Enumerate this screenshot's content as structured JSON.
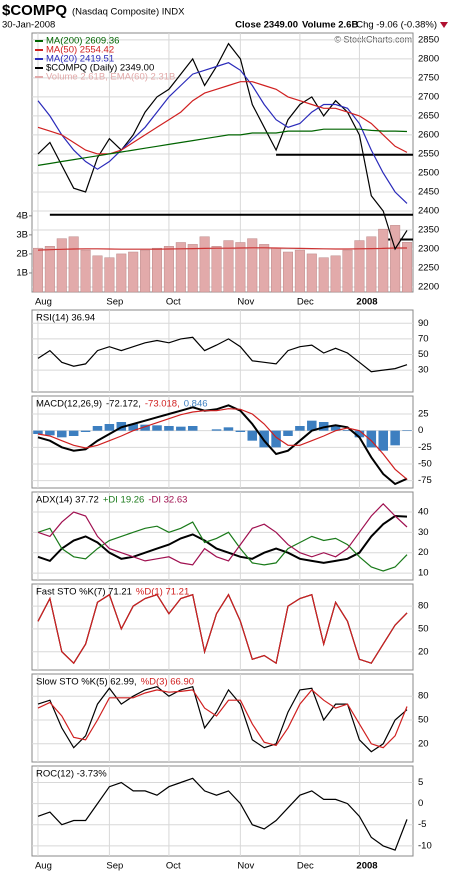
{
  "header": {
    "symbol": "$COMPQ",
    "name": "(Nasdaq Composite) INDX",
    "date": "30-Jan-2008",
    "close": "Close 2349.00",
    "volume": "Volume 2.6B",
    "change": "Chg -9.06 (-0.38%)",
    "watermark": "© StockCharts.com"
  },
  "chart_data": [
    {
      "type": "line",
      "legend": "stack",
      "categories": [
        "Aug",
        null,
        null,
        null,
        null,
        null,
        "Sep",
        null,
        null,
        null,
        null,
        "Oct",
        null,
        null,
        null,
        null,
        null,
        "Nov",
        null,
        null,
        null,
        null,
        "Dec",
        null,
        null,
        null,
        null,
        "2008",
        null,
        null,
        null,
        null
      ],
      "ylim": [
        2187,
        2868
      ],
      "yticks": [
        2200,
        2250,
        2300,
        2350,
        2400,
        2450,
        2500,
        2550,
        2600,
        2650,
        2700,
        2750,
        2800,
        2850
      ],
      "y2lim": [
        0,
        13.6
      ],
      "y2ticks": [
        {
          "value": 1,
          "label": "1B"
        },
        {
          "value": 2,
          "label": "2B"
        },
        {
          "value": 3,
          "label": "3B"
        },
        {
          "value": 4,
          "label": "4B"
        }
      ],
      "hlines": [
        {
          "value": 2548,
          "start": 20
        },
        {
          "value": 2390,
          "start": 1
        },
        {
          "value": 2325,
          "start": 29
        }
      ],
      "series": [
        {
          "name": "Volume 2.61B, EMA(60) 2.31B",
          "kind": "bar",
          "axis": "y2",
          "color": "#e2aaaa",
          "values": [
            2.3,
            2.4,
            2.8,
            2.9,
            2.2,
            1.9,
            1.8,
            2.0,
            2.1,
            2.2,
            2.3,
            2.4,
            2.6,
            2.5,
            2.9,
            2.4,
            2.7,
            2.6,
            2.8,
            2.5,
            2.3,
            2.1,
            2.2,
            2.0,
            1.8,
            1.9,
            2.2,
            2.7,
            2.9,
            3.3,
            3.5,
            2.61
          ]
        },
        {
          "kind": "line",
          "axis": "y2",
          "color": "#cc3333",
          "values": [
            2.2,
            2.22,
            2.24,
            2.26,
            2.27,
            2.27,
            2.26,
            2.25,
            2.25,
            2.25,
            2.25,
            2.26,
            2.27,
            2.28,
            2.29,
            2.3,
            2.3,
            2.31,
            2.32,
            2.32,
            2.31,
            2.3,
            2.29,
            2.28,
            2.27,
            2.26,
            2.26,
            2.27,
            2.28,
            2.29,
            2.31,
            2.31
          ]
        },
        {
          "name": "$COMPQ (Daily) 2349.00",
          "kind": "line",
          "color": "#000000",
          "values": [
            2550,
            2580,
            2520,
            2460,
            2450,
            2540,
            2590,
            2560,
            2600,
            2660,
            2700,
            2720,
            2760,
            2800,
            2730,
            2780,
            2840,
            2800,
            2680,
            2620,
            2560,
            2640,
            2680,
            2700,
            2650,
            2690,
            2660,
            2600,
            2440,
            2400,
            2300,
            2349
          ]
        },
        {
          "name": "MA(20) 2419.51",
          "kind": "line",
          "color": "#2a2aba",
          "values": [
            2690,
            2650,
            2600,
            2560,
            2530,
            2510,
            2530,
            2560,
            2590,
            2620,
            2660,
            2700,
            2730,
            2760,
            2770,
            2780,
            2790,
            2770,
            2730,
            2680,
            2640,
            2620,
            2630,
            2660,
            2680,
            2680,
            2670,
            2630,
            2560,
            2500,
            2450,
            2420
          ]
        },
        {
          "name": "MA(50) 2554.42",
          "kind": "line",
          "color": "#d02020",
          "values": [
            2620,
            2610,
            2600,
            2580,
            2560,
            2550,
            2550,
            2560,
            2580,
            2600,
            2620,
            2640,
            2660,
            2690,
            2710,
            2720,
            2730,
            2740,
            2740,
            2730,
            2720,
            2700,
            2690,
            2680,
            2670,
            2670,
            2660,
            2650,
            2630,
            2600,
            2570,
            2554
          ]
        },
        {
          "name": "MA(200) 2609.36",
          "kind": "line",
          "color": "#006400",
          "values": [
            2520,
            2525,
            2530,
            2535,
            2540,
            2545,
            2550,
            2555,
            2560,
            2565,
            2570,
            2575,
            2580,
            2585,
            2590,
            2595,
            2600,
            2600,
            2605,
            2605,
            2605,
            2610,
            2610,
            2610,
            2615,
            2615,
            2615,
            2615,
            2612,
            2610,
            2610,
            2609
          ]
        }
      ]
    },
    {
      "type": "line",
      "legend": "inline",
      "ylim": [
        2,
        107
      ],
      "yticks": [
        30,
        50,
        70,
        90
      ],
      "series": [
        {
          "name": "RSI(14) 36.94",
          "kind": "line",
          "color": "#000000",
          "values": [
            45,
            55,
            40,
            35,
            38,
            55,
            60,
            55,
            60,
            65,
            68,
            65,
            70,
            72,
            55,
            62,
            70,
            60,
            42,
            40,
            38,
            55,
            60,
            62,
            52,
            58,
            52,
            40,
            28,
            30,
            32,
            37
          ]
        }
      ]
    },
    {
      "type": "line",
      "legend": "inline",
      "title": "MACD(12,26,9)",
      "ylim": [
        -86,
        52
      ],
      "yticks": [
        -75,
        -50,
        -25,
        0,
        25
      ],
      "series": [
        {
          "name": "0.846",
          "kind": "bar",
          "color": "#3d7fc0",
          "values": [
            -5,
            -7,
            -10,
            -8,
            -2,
            7,
            10,
            13,
            10,
            9,
            8,
            7,
            6,
            7,
            0,
            2,
            5,
            -2,
            -15,
            -25,
            -25,
            -8,
            7,
            15,
            13,
            8,
            1,
            -10,
            -25,
            -30,
            -22,
            0.846
          ]
        },
        {
          "name": "-72.172,",
          "kind": "line",
          "color": "#000000",
          "width": 2,
          "values": [
            -10,
            -15,
            -25,
            -30,
            -28,
            -15,
            -5,
            5,
            10,
            15,
            20,
            25,
            30,
            35,
            30,
            32,
            38,
            30,
            10,
            -15,
            -35,
            -30,
            -15,
            0,
            5,
            8,
            5,
            -10,
            -40,
            -65,
            -80,
            -72
          ]
        },
        {
          "name": "-73.018,",
          "kind": "line",
          "color": "#d02020",
          "values": [
            -5,
            -8,
            -15,
            -22,
            -26,
            -22,
            -15,
            -8,
            0,
            6,
            12,
            18,
            24,
            28,
            30,
            30,
            33,
            32,
            25,
            10,
            -10,
            -22,
            -22,
            -15,
            -8,
            0,
            4,
            0,
            -15,
            -35,
            -58,
            -73
          ]
        }
      ]
    },
    {
      "type": "line",
      "legend": "inline",
      "ylim": [
        6.6,
        49.8
      ],
      "yticks": [
        10,
        20,
        30,
        40
      ],
      "series": [
        {
          "name": "ADX(14) 37.72",
          "kind": "line",
          "color": "#000000",
          "width": 2,
          "values": [
            18,
            16,
            22,
            26,
            28,
            25,
            20,
            17,
            18,
            20,
            22,
            24,
            27,
            29,
            26,
            22,
            20,
            18,
            17,
            20,
            22,
            20,
            17,
            16,
            15,
            16,
            17,
            20,
            28,
            34,
            38,
            37.7
          ]
        },
        {
          "name": "+DI 19.26",
          "kind": "line",
          "color": "#1a7a1a",
          "values": [
            30,
            32,
            22,
            18,
            17,
            22,
            26,
            28,
            30,
            32,
            33,
            30,
            32,
            35,
            25,
            27,
            30,
            22,
            15,
            14,
            15,
            22,
            25,
            28,
            26,
            27,
            24,
            18,
            13,
            11,
            13,
            19
          ]
        },
        {
          "name": "-DI 32.63",
          "kind": "line",
          "color": "#a01050",
          "values": [
            30,
            28,
            35,
            40,
            38,
            28,
            22,
            20,
            18,
            16,
            17,
            18,
            15,
            14,
            22,
            18,
            16,
            24,
            32,
            34,
            30,
            24,
            20,
            18,
            20,
            18,
            22,
            30,
            38,
            44,
            38,
            32.6
          ]
        }
      ]
    },
    {
      "type": "line",
      "legend": "inline",
      "ylim": [
        -4,
        109
      ],
      "yticks": [
        20,
        50,
        80
      ],
      "series": [
        {
          "name": "Fast STO %K(7) 71.21",
          "kind": "line",
          "color": "#000000",
          "values": [
            60,
            90,
            20,
            5,
            30,
            85,
            95,
            50,
            80,
            90,
            95,
            70,
            90,
            95,
            20,
            70,
            95,
            60,
            10,
            15,
            5,
            80,
            90,
            95,
            30,
            85,
            60,
            10,
            5,
            30,
            55,
            71
          ]
        },
        {
          "name": "%D(1) 71.21",
          "kind": "line",
          "color": "#d02020",
          "values": [
            60,
            90,
            20,
            5,
            30,
            85,
            95,
            50,
            80,
            90,
            95,
            70,
            90,
            95,
            20,
            70,
            95,
            60,
            10,
            15,
            5,
            80,
            90,
            95,
            30,
            85,
            60,
            10,
            5,
            30,
            55,
            71
          ]
        }
      ]
    },
    {
      "type": "line",
      "legend": "inline",
      "ylim": [
        -3,
        108
      ],
      "yticks": [
        20,
        50,
        80
      ],
      "series": [
        {
          "name": "Slow STO %K(5) 62.99,",
          "kind": "line",
          "color": "#000000",
          "values": [
            70,
            75,
            40,
            15,
            30,
            70,
            90,
            70,
            80,
            88,
            92,
            80,
            88,
            92,
            40,
            60,
            88,
            70,
            25,
            15,
            20,
            60,
            88,
            90,
            50,
            70,
            70,
            25,
            10,
            20,
            50,
            63
          ]
        },
        {
          "name": "%D(3) 66.90",
          "kind": "line",
          "color": "#d02020",
          "values": [
            65,
            72,
            55,
            28,
            25,
            50,
            78,
            78,
            78,
            84,
            88,
            85,
            86,
            88,
            65,
            55,
            75,
            75,
            45,
            22,
            18,
            40,
            70,
            88,
            75,
            65,
            70,
            45,
            20,
            15,
            30,
            67
          ]
        }
      ]
    },
    {
      "type": "line",
      "legend": "inline",
      "ylim": [
        -12.4,
        8.9
      ],
      "yticks": [
        -10,
        -5,
        0,
        5
      ],
      "categories": [
        "Aug",
        null,
        null,
        null,
        null,
        null,
        "Sep",
        null,
        null,
        null,
        null,
        "Oct",
        null,
        null,
        null,
        null,
        null,
        "Nov",
        null,
        null,
        null,
        null,
        "Dec",
        null,
        null,
        null,
        null,
        "2008",
        null,
        null,
        null,
        null
      ],
      "series": [
        {
          "name": "ROC(12) -3.73%",
          "kind": "line",
          "color": "#000000",
          "values": [
            -3,
            -2,
            -5,
            -4,
            -4,
            0,
            4,
            5,
            3,
            3,
            2,
            4,
            5,
            6,
            3,
            2,
            3,
            0,
            -5,
            -6,
            -4,
            -1,
            2,
            3,
            1,
            1,
            0,
            -3,
            -8,
            -10,
            -11,
            -3.73
          ]
        }
      ]
    }
  ]
}
